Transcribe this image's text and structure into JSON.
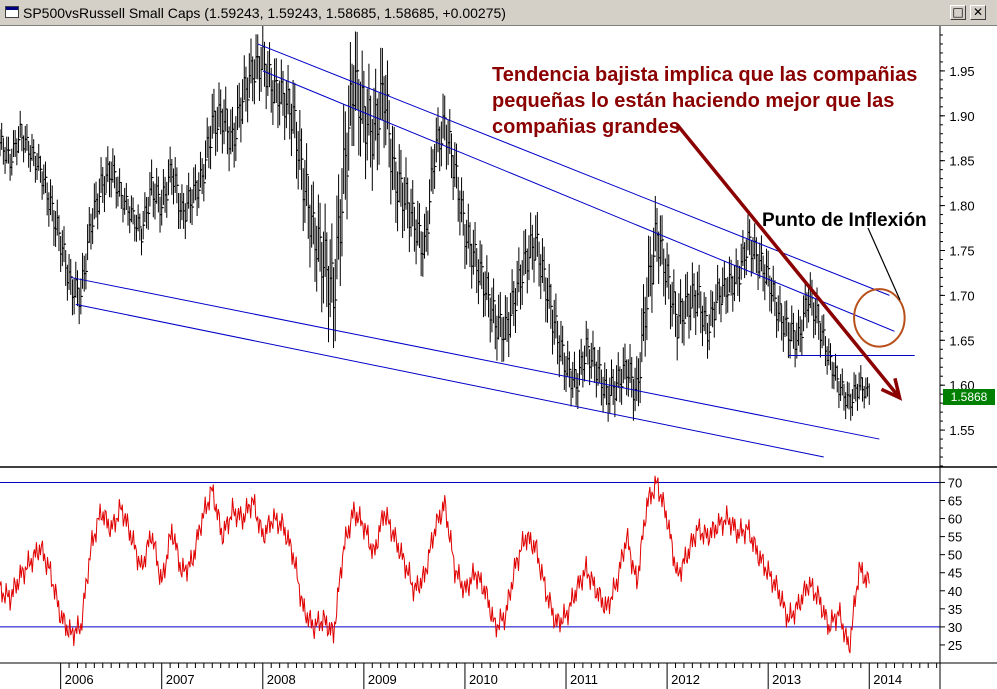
{
  "window": {
    "title": "SP500vsRussell Small Caps",
    "ohlc_readout": "(1.59243, 1.59243, 1.58685, 1.58685, +0.00275)",
    "restore_label": "□",
    "close_label": "✕"
  },
  "colors": {
    "price": "#000000",
    "channel": "#0000c8",
    "arrow": "#8b0000",
    "rsi": "#e00000",
    "circle": "#b8501a",
    "last_price_bg": "#008000"
  },
  "chart_data": [
    {
      "type": "ohlc",
      "panel": "price",
      "title": "SP500vsRussell Small Caps",
      "ylim": [
        1.51,
        2.0
      ],
      "yticks": [
        1.55,
        1.6,
        1.65,
        1.7,
        1.75,
        1.8,
        1.85,
        1.9,
        1.95
      ],
      "ytick_labels": [
        "1.55",
        "1.60",
        "1.65",
        "1.70",
        "1.75",
        "1.80",
        "1.85",
        "1.90",
        "1.95"
      ],
      "xlim": [
        2005.4,
        2014.7
      ],
      "xticks": [
        2006,
        2007,
        2008,
        2009,
        2010,
        2011,
        2012,
        2013,
        2014
      ],
      "xtick_labels": [
        "2006",
        "2007",
        "2008",
        "2009",
        "2010",
        "2011",
        "2012",
        "2013",
        "2014"
      ],
      "grid": false,
      "last_value": 1.58685,
      "last_value_label": "1.5868",
      "series": [
        {
          "x": [
            2005.4,
            2005.5,
            2005.6,
            2005.7,
            2005.8,
            2005.9,
            2006.0,
            2006.1,
            2006.2,
            2006.3,
            2006.4,
            2006.5,
            2006.6,
            2006.7,
            2006.8,
            2006.9,
            2007.0,
            2007.1,
            2007.2,
            2007.3,
            2007.4,
            2007.5,
            2007.6,
            2007.7,
            2007.8,
            2007.9,
            2008.0,
            2008.1,
            2008.2,
            2008.3,
            2008.4,
            2008.5,
            2008.6,
            2008.7,
            2008.8,
            2008.9,
            2009.0,
            2009.1,
            2009.2,
            2009.3,
            2009.4,
            2009.5,
            2009.6,
            2009.7,
            2009.8,
            2009.9,
            2010.0,
            2010.1,
            2010.2,
            2010.3,
            2010.4,
            2010.5,
            2010.6,
            2010.7,
            2010.8,
            2010.9,
            2011.0,
            2011.1,
            2011.2,
            2011.3,
            2011.4,
            2011.5,
            2011.6,
            2011.7,
            2011.8,
            2011.9,
            2012.0,
            2012.1,
            2012.2,
            2012.3,
            2012.4,
            2012.5,
            2012.6,
            2012.7,
            2012.8,
            2012.9,
            2013.0,
            2013.1,
            2013.2,
            2013.3,
            2013.4,
            2013.5,
            2013.6,
            2013.7,
            2013.8,
            2013.9,
            2014.0
          ],
          "close": [
            1.87,
            1.85,
            1.88,
            1.86,
            1.84,
            1.8,
            1.76,
            1.71,
            1.7,
            1.78,
            1.82,
            1.84,
            1.81,
            1.79,
            1.77,
            1.82,
            1.8,
            1.84,
            1.79,
            1.81,
            1.83,
            1.89,
            1.9,
            1.87,
            1.92,
            1.95,
            1.96,
            1.93,
            1.92,
            1.9,
            1.83,
            1.77,
            1.74,
            1.7,
            1.83,
            1.94,
            1.9,
            1.88,
            1.93,
            1.83,
            1.81,
            1.78,
            1.75,
            1.86,
            1.89,
            1.84,
            1.77,
            1.74,
            1.71,
            1.67,
            1.66,
            1.7,
            1.74,
            1.76,
            1.71,
            1.66,
            1.62,
            1.6,
            1.64,
            1.62,
            1.59,
            1.6,
            1.62,
            1.59,
            1.7,
            1.77,
            1.72,
            1.67,
            1.69,
            1.7,
            1.66,
            1.7,
            1.71,
            1.72,
            1.76,
            1.74,
            1.72,
            1.68,
            1.66,
            1.65,
            1.7,
            1.67,
            1.63,
            1.6,
            1.58,
            1.6,
            1.59
          ],
          "range": [
            0.03,
            0.03,
            0.03,
            0.03,
            0.03,
            0.04,
            0.04,
            0.04,
            0.04,
            0.04,
            0.04,
            0.04,
            0.03,
            0.03,
            0.03,
            0.04,
            0.04,
            0.04,
            0.04,
            0.04,
            0.04,
            0.05,
            0.05,
            0.05,
            0.05,
            0.05,
            0.05,
            0.05,
            0.05,
            0.06,
            0.07,
            0.07,
            0.08,
            0.09,
            0.1,
            0.09,
            0.08,
            0.08,
            0.08,
            0.07,
            0.06,
            0.05,
            0.05,
            0.05,
            0.05,
            0.05,
            0.05,
            0.05,
            0.05,
            0.05,
            0.05,
            0.05,
            0.05,
            0.05,
            0.05,
            0.05,
            0.04,
            0.04,
            0.04,
            0.04,
            0.04,
            0.04,
            0.04,
            0.05,
            0.07,
            0.06,
            0.05,
            0.05,
            0.05,
            0.05,
            0.04,
            0.04,
            0.04,
            0.04,
            0.04,
            0.04,
            0.04,
            0.04,
            0.04,
            0.04,
            0.04,
            0.04,
            0.03,
            0.03,
            0.03,
            0.03,
            0.02
          ]
        }
      ],
      "trendlines": [
        {
          "from": [
            2006.1,
            1.72
          ],
          "to": [
            2014.1,
            1.54
          ]
        },
        {
          "from": [
            2006.15,
            1.69
          ],
          "to": [
            2013.55,
            1.52
          ]
        },
        {
          "from": [
            2007.95,
            1.98
          ],
          "to": [
            2014.2,
            1.7
          ]
        },
        {
          "from": [
            2008.0,
            1.95
          ],
          "to": [
            2014.25,
            1.66
          ]
        },
        {
          "from": [
            2013.2,
            1.633
          ],
          "to": [
            2014.45,
            1.633
          ]
        }
      ],
      "arrow": {
        "from": [
          2012.1,
          1.89
        ],
        "to": [
          2014.3,
          1.586
        ]
      },
      "circle": {
        "center": [
          2014.1,
          1.675
        ],
        "rx_years": 0.25,
        "ry": 0.032
      },
      "annotations": [
        "Tendencia bajista implica que las compañias",
        "pequeñas lo están haciendo mejor que las",
        "compañias grandes",
        "Punto de Inflexión"
      ]
    },
    {
      "type": "line",
      "panel": "indicator",
      "ylim": [
        20,
        74
      ],
      "yticks": [
        25,
        30,
        35,
        40,
        45,
        50,
        55,
        60,
        65,
        70
      ],
      "ytick_labels": [
        "25",
        "30",
        "35",
        "40",
        "45",
        "50",
        "55",
        "60",
        "65",
        "70"
      ],
      "hlines": [
        30,
        70
      ],
      "series": [
        {
          "x": [
            2005.4,
            2005.5,
            2005.6,
            2005.7,
            2005.8,
            2005.9,
            2006.0,
            2006.1,
            2006.2,
            2006.3,
            2006.4,
            2006.5,
            2006.6,
            2006.7,
            2006.8,
            2006.9,
            2007.0,
            2007.1,
            2007.2,
            2007.3,
            2007.4,
            2007.5,
            2007.6,
            2007.7,
            2007.8,
            2007.9,
            2008.0,
            2008.1,
            2008.2,
            2008.3,
            2008.4,
            2008.5,
            2008.6,
            2008.7,
            2008.8,
            2008.9,
            2009.0,
            2009.1,
            2009.2,
            2009.3,
            2009.4,
            2009.5,
            2009.6,
            2009.7,
            2009.8,
            2009.9,
            2010.0,
            2010.1,
            2010.2,
            2010.3,
            2010.4,
            2010.5,
            2010.6,
            2010.7,
            2010.8,
            2010.9,
            2011.0,
            2011.1,
            2011.2,
            2011.3,
            2011.4,
            2011.5,
            2011.6,
            2011.7,
            2011.8,
            2011.9,
            2012.0,
            2012.1,
            2012.2,
            2012.3,
            2012.4,
            2012.5,
            2012.6,
            2012.7,
            2012.8,
            2012.9,
            2013.0,
            2013.1,
            2013.2,
            2013.3,
            2013.4,
            2013.5,
            2013.6,
            2013.7,
            2013.8,
            2013.9,
            2014.0
          ],
          "values": [
            40,
            38,
            44,
            48,
            52,
            45,
            33,
            28,
            30,
            52,
            62,
            57,
            63,
            55,
            46,
            56,
            42,
            57,
            45,
            48,
            60,
            68,
            55,
            62,
            60,
            65,
            55,
            60,
            58,
            50,
            35,
            30,
            32,
            28,
            52,
            62,
            58,
            50,
            62,
            55,
            48,
            40,
            44,
            57,
            64,
            46,
            40,
            45,
            40,
            30,
            33,
            47,
            55,
            52,
            40,
            31,
            33,
            40,
            46,
            40,
            35,
            42,
            55,
            42,
            64,
            70,
            60,
            44,
            50,
            57,
            55,
            58,
            60,
            56,
            57,
            50,
            45,
            40,
            32,
            36,
            42,
            38,
            30,
            34,
            24,
            46,
            42
          ]
        }
      ]
    }
  ]
}
